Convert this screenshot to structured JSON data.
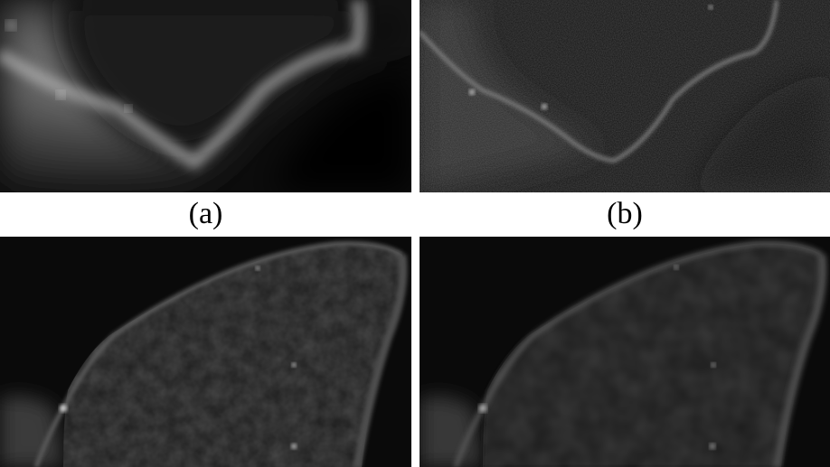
{
  "figure": {
    "panels": [
      {
        "id": "a",
        "caption": "(a)"
      },
      {
        "id": "b",
        "caption": "(b)"
      },
      {
        "id": "c",
        "caption": ""
      },
      {
        "id": "d",
        "caption": ""
      }
    ]
  }
}
